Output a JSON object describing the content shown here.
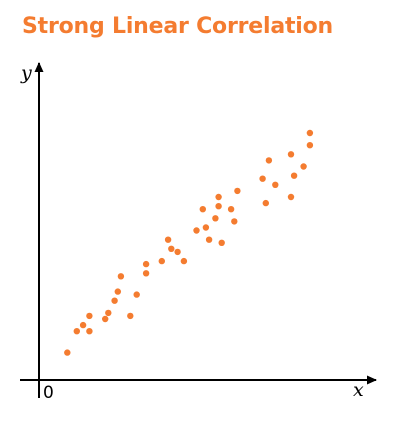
{
  "colors": {
    "accent": "#f47c30",
    "axis": "#000000"
  },
  "chart_data": {
    "type": "scatter",
    "title": "Strong Linear Correlation",
    "xlabel": "x",
    "ylabel": "y",
    "origin_label": "0",
    "xlim": [
      0,
      10
    ],
    "ylim": [
      0,
      10
    ],
    "grid": false,
    "legend": "none",
    "points": [
      {
        "x": 0.9,
        "y": 0.9
      },
      {
        "x": 1.2,
        "y": 1.6
      },
      {
        "x": 1.4,
        "y": 1.8
      },
      {
        "x": 1.6,
        "y": 1.6
      },
      {
        "x": 1.6,
        "y": 2.1
      },
      {
        "x": 2.1,
        "y": 2.0
      },
      {
        "x": 2.2,
        "y": 2.2
      },
      {
        "x": 2.4,
        "y": 2.6
      },
      {
        "x": 2.5,
        "y": 2.9
      },
      {
        "x": 2.6,
        "y": 3.4
      },
      {
        "x": 2.9,
        "y": 2.1
      },
      {
        "x": 3.1,
        "y": 2.8
      },
      {
        "x": 3.4,
        "y": 3.5
      },
      {
        "x": 3.4,
        "y": 3.8
      },
      {
        "x": 3.9,
        "y": 3.9
      },
      {
        "x": 4.1,
        "y": 4.6
      },
      {
        "x": 4.2,
        "y": 4.3
      },
      {
        "x": 4.4,
        "y": 4.2
      },
      {
        "x": 4.6,
        "y": 3.9
      },
      {
        "x": 5.0,
        "y": 4.9
      },
      {
        "x": 5.2,
        "y": 5.6
      },
      {
        "x": 5.3,
        "y": 5.0
      },
      {
        "x": 5.4,
        "y": 4.6
      },
      {
        "x": 5.6,
        "y": 5.3
      },
      {
        "x": 5.7,
        "y": 5.7
      },
      {
        "x": 5.7,
        "y": 6.0
      },
      {
        "x": 5.8,
        "y": 4.5
      },
      {
        "x": 6.1,
        "y": 5.6
      },
      {
        "x": 6.2,
        "y": 5.2
      },
      {
        "x": 6.3,
        "y": 6.2
      },
      {
        "x": 7.1,
        "y": 6.6
      },
      {
        "x": 7.2,
        "y": 5.8
      },
      {
        "x": 7.3,
        "y": 7.2
      },
      {
        "x": 7.5,
        "y": 6.4
      },
      {
        "x": 8.0,
        "y": 7.4
      },
      {
        "x": 8.0,
        "y": 6.0
      },
      {
        "x": 8.1,
        "y": 6.7
      },
      {
        "x": 8.4,
        "y": 7.0
      },
      {
        "x": 8.6,
        "y": 7.7
      },
      {
        "x": 8.6,
        "y": 8.1
      }
    ]
  }
}
